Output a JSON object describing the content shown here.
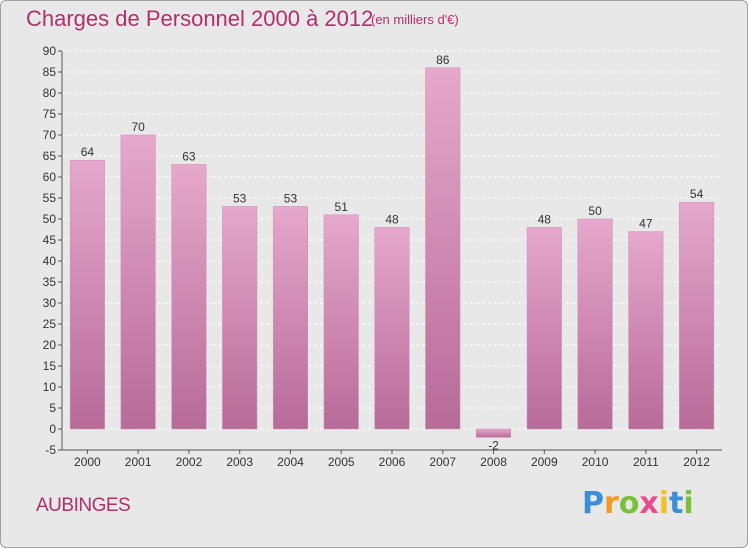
{
  "chart_data": {
    "type": "bar",
    "title": "Charges de Personnel 2000 à 2012",
    "subtitle": "(en milliers d'€)",
    "categories": [
      "2000",
      "2001",
      "2002",
      "2003",
      "2004",
      "2005",
      "2006",
      "2007",
      "2008",
      "2009",
      "2010",
      "2011",
      "2012"
    ],
    "values": [
      64,
      70,
      63,
      53,
      53,
      51,
      48,
      86,
      -2,
      48,
      50,
      47,
      54
    ],
    "value_labels": [
      "64",
      "70",
      "63",
      "53",
      "53",
      "51",
      "48",
      "86",
      "-2",
      "48",
      "50",
      "47",
      "54"
    ],
    "y_ticks": [
      -5,
      0,
      5,
      10,
      15,
      20,
      25,
      30,
      35,
      40,
      45,
      50,
      55,
      60,
      65,
      70,
      75,
      80,
      85,
      90
    ],
    "ylim": [
      -5,
      90
    ],
    "grid": true,
    "bar_color_top": "#e6a8cc",
    "bar_color_bottom": "#b76b98",
    "title_color": "#b0306e"
  },
  "location": "AUBINGES",
  "brand": {
    "letters": [
      "P",
      "r",
      "o",
      "x",
      "i",
      "t",
      "i"
    ],
    "colors": [
      "#3a8fd6",
      "#f29a1f",
      "#7bbf3a",
      "#e84a8a",
      "#f2c21f",
      "#3a8fd6",
      "#7bbf3a"
    ]
  }
}
